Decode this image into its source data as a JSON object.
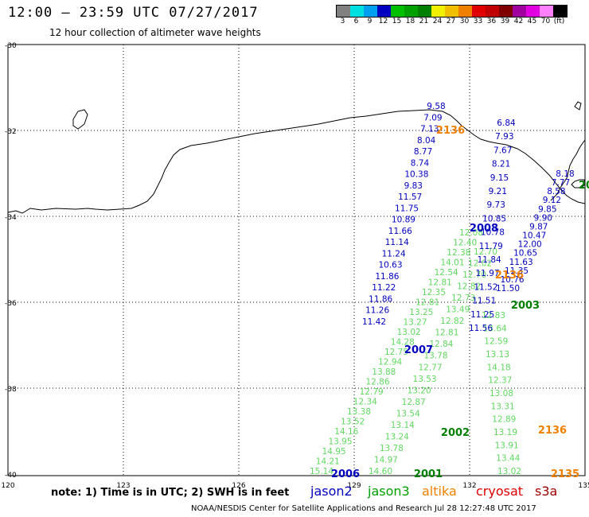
{
  "header": {
    "title": "12:00 – 23:59 UTC 07/27/2017",
    "subtitle": "12 hour collection of altimeter wave heights"
  },
  "color_scale": {
    "colors": [
      "#808080",
      "#00e0e0",
      "#00a0f0",
      "#0000c0",
      "#00c000",
      "#00a000",
      "#008000",
      "#f0f000",
      "#f0c000",
      "#f08000",
      "#e00000",
      "#c00000",
      "#800000",
      "#a000a0",
      "#e000e0",
      "#ff80ff",
      "#000000"
    ],
    "labels": [
      "3",
      "6",
      "9",
      "12",
      "15",
      "18",
      "21",
      "24",
      "27",
      "30",
      "33",
      "36",
      "39",
      "42",
      "45",
      "70",
      "(ft)"
    ]
  },
  "axes": {
    "x_ticks": [
      "120",
      "123",
      "126",
      "129",
      "132",
      "135"
    ],
    "y_ticks": [
      "-30",
      "-32",
      "-34",
      "-36",
      "-38",
      "-40"
    ]
  },
  "note": "note:  1) Time is in UTC;  2) SWH is in feet",
  "satellites": [
    {
      "name": "jason2",
      "color": "#0000c0"
    },
    {
      "name": "jason3",
      "color": "#00a000"
    },
    {
      "name": "altika",
      "color": "#f08000"
    },
    {
      "name": "cryosat",
      "color": "#e00000"
    },
    {
      "name": "s3a",
      "color": "#a00000"
    }
  ],
  "footer": "NOAA/NESDIS Center for Satellite Applications and Research    Jul 28 12:27:48 UTC 2017",
  "tracks": [
    {
      "id": "track-jason3-2006",
      "color": "#60d860",
      "label": "2006",
      "label_color": "#0000c0",
      "values": [
        "15.14",
        "14.21",
        "14.95",
        "13.95",
        "14.16",
        "13.52",
        "13.38",
        "12.34",
        "12.79",
        "12.86",
        "13.88",
        "12.94",
        "12.75",
        "14.28",
        "13.02",
        "13.27",
        "13.25",
        "12.81",
        "12.35",
        "12.81",
        "12.54",
        "14.01",
        "12.38",
        "12.40",
        "12.08"
      ]
    },
    {
      "id": "track-jason3-2001",
      "color": "#60d860",
      "label": "2001",
      "label_color": "#008000",
      "values": [
        "14.60",
        "14.97",
        "13.78",
        "13.24",
        "13.14",
        "13.54",
        "12.87",
        "13.20",
        "13.53",
        "12.77",
        "13.78",
        "12.84",
        "12.81",
        "12.82",
        "13.49",
        "12.73",
        "12.82",
        "12.70",
        "12.02",
        "12.70"
      ]
    },
    {
      "id": "track-jason3-2003",
      "color": "#60d860",
      "label": "2003",
      "label_color": "#008000",
      "values": [
        "13.02",
        "13.44",
        "13.91",
        "13.19",
        "12.89",
        "13.31",
        "13.08",
        "12.37",
        "14.18",
        "13.13",
        "12.59",
        "13.64",
        "12.83"
      ]
    },
    {
      "id": "track-jason2-2007",
      "color": "#0000c0",
      "label": "2007",
      "label_color": "#0000c0",
      "values": [
        "11.42",
        "11.26",
        "11.86",
        "11.22",
        "11.86",
        "10.63",
        "11.24",
        "11.14",
        "11.66",
        "10.89",
        "11.75",
        "11.57",
        "9.83",
        "10.38",
        "8.74",
        "8.77",
        "8.04",
        "7.13",
        "7.09",
        "9.58"
      ]
    },
    {
      "id": "track-jason2-2008",
      "color": "#0000c0",
      "label": "2008",
      "label_color": "#0000c0",
      "values": [
        "11.56",
        "11.25",
        "11.51",
        "11.52",
        "11.97",
        "11.84",
        "11.79",
        "10.78",
        "10.85",
        "9.73",
        "9.21",
        "9.15",
        "8.21",
        "7.67",
        "7.93",
        "6.84"
      ]
    },
    {
      "id": "track-jason2-2135",
      "color": "#0000c0",
      "label": "2135",
      "label_color": "#f08000",
      "values": [
        "11.50",
        "10.76",
        "11.35",
        "11.63",
        "10.65",
        "12.00",
        "10.47",
        "9.87",
        "9.90",
        "9.85",
        "9.12",
        "8.58",
        "7.77",
        "8.18"
      ]
    }
  ],
  "pass_labels": [
    {
      "text": "2136",
      "color": "#f08000"
    },
    {
      "text": "2136",
      "color": "#f08000"
    },
    {
      "text": "2136",
      "color": "#f08000"
    },
    {
      "text": "2002",
      "color": "#008000"
    },
    {
      "text": "20",
      "color": "#008000"
    }
  ]
}
